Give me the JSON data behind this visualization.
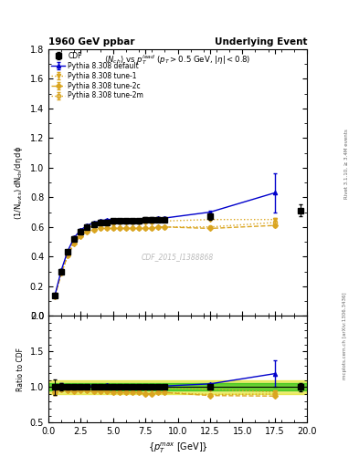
{
  "title_left": "1960 GeV ppbar",
  "title_right": "Underlying Event",
  "subtitle": "<N_{ch}> vs p_T^{lead} (p_T > 0.5 GeV, |\\eta| < 0.8)",
  "watermark": "CDF_2015_I1388868",
  "right_label": "mcplots.cern.ch [arXiv:1306.3436]",
  "right_label2": "Rivet 3.1.10, ≥ 3.4M events",
  "xlabel": "{p_T^{max} [GeV]}",
  "ylabel_main": "((1/N_{events}) dN_{ch}/dη, dϕ)",
  "ylabel_ratio": "Ratio to CDF",
  "xlim": [
    0,
    20
  ],
  "ylim_main": [
    0.0,
    1.8
  ],
  "ylim_ratio": [
    0.5,
    2.0
  ],
  "cdf_x": [
    0.5,
    1.0,
    1.5,
    2.0,
    2.5,
    3.0,
    3.5,
    4.0,
    4.5,
    5.0,
    5.5,
    6.0,
    6.5,
    7.0,
    7.5,
    8.0,
    8.5,
    9.0,
    12.5,
    19.5
  ],
  "cdf_y": [
    0.14,
    0.3,
    0.43,
    0.52,
    0.57,
    0.6,
    0.62,
    0.63,
    0.63,
    0.64,
    0.64,
    0.64,
    0.64,
    0.64,
    0.65,
    0.65,
    0.65,
    0.65,
    0.67,
    0.71
  ],
  "cdf_yerr": [
    0.015,
    0.015,
    0.015,
    0.015,
    0.015,
    0.015,
    0.015,
    0.015,
    0.015,
    0.015,
    0.015,
    0.015,
    0.015,
    0.015,
    0.015,
    0.015,
    0.015,
    0.015,
    0.02,
    0.04
  ],
  "py_default_x": [
    0.5,
    1.0,
    1.5,
    2.0,
    2.5,
    3.0,
    3.5,
    4.0,
    4.5,
    5.0,
    5.5,
    6.0,
    6.5,
    7.0,
    7.5,
    8.0,
    8.5,
    9.0,
    12.5,
    17.5
  ],
  "py_default_y": [
    0.14,
    0.31,
    0.44,
    0.53,
    0.58,
    0.61,
    0.63,
    0.64,
    0.65,
    0.65,
    0.65,
    0.65,
    0.65,
    0.65,
    0.65,
    0.65,
    0.66,
    0.66,
    0.7,
    0.83
  ],
  "py_default_yerr": [
    0.005,
    0.005,
    0.005,
    0.005,
    0.005,
    0.005,
    0.005,
    0.005,
    0.005,
    0.005,
    0.005,
    0.005,
    0.005,
    0.005,
    0.005,
    0.005,
    0.005,
    0.005,
    0.01,
    0.13
  ],
  "py_tune1_x": [
    0.5,
    1.0,
    1.5,
    2.0,
    2.5,
    3.0,
    3.5,
    4.0,
    4.5,
    5.0,
    5.5,
    6.0,
    6.5,
    7.0,
    7.5,
    8.0,
    8.5,
    9.0,
    12.5,
    17.5
  ],
  "py_tune1_y": [
    0.13,
    0.29,
    0.42,
    0.51,
    0.56,
    0.59,
    0.61,
    0.62,
    0.62,
    0.62,
    0.63,
    0.63,
    0.63,
    0.63,
    0.63,
    0.63,
    0.64,
    0.64,
    0.65,
    0.65
  ],
  "py_tune1_yerr": [
    0.005,
    0.005,
    0.005,
    0.005,
    0.005,
    0.005,
    0.005,
    0.005,
    0.005,
    0.005,
    0.005,
    0.005,
    0.005,
    0.005,
    0.005,
    0.005,
    0.005,
    0.005,
    0.005,
    0.01
  ],
  "py_tune2c_x": [
    0.5,
    1.0,
    1.5,
    2.0,
    2.5,
    3.0,
    3.5,
    4.0,
    4.5,
    5.0,
    5.5,
    6.0,
    6.5,
    7.0,
    7.5,
    8.0,
    8.5,
    9.0,
    12.5,
    17.5
  ],
  "py_tune2c_y": [
    0.13,
    0.29,
    0.41,
    0.49,
    0.54,
    0.57,
    0.58,
    0.59,
    0.59,
    0.59,
    0.59,
    0.59,
    0.59,
    0.59,
    0.59,
    0.59,
    0.6,
    0.6,
    0.59,
    0.61
  ],
  "py_tune2c_yerr": [
    0.005,
    0.005,
    0.005,
    0.005,
    0.005,
    0.005,
    0.005,
    0.005,
    0.005,
    0.005,
    0.005,
    0.005,
    0.005,
    0.005,
    0.005,
    0.005,
    0.005,
    0.005,
    0.005,
    0.01
  ],
  "py_tune2m_x": [
    0.5,
    1.0,
    1.5,
    2.0,
    2.5,
    3.0,
    3.5,
    4.0,
    4.5,
    5.0,
    5.5,
    6.0,
    6.5,
    7.0,
    7.5,
    8.0,
    8.5,
    9.0,
    12.5,
    17.5
  ],
  "py_tune2m_y": [
    0.13,
    0.29,
    0.41,
    0.5,
    0.55,
    0.57,
    0.58,
    0.59,
    0.59,
    0.59,
    0.59,
    0.59,
    0.59,
    0.59,
    0.59,
    0.59,
    0.6,
    0.6,
    0.6,
    0.63
  ],
  "py_tune2m_yerr": [
    0.005,
    0.005,
    0.005,
    0.005,
    0.005,
    0.005,
    0.005,
    0.005,
    0.005,
    0.005,
    0.005,
    0.005,
    0.005,
    0.005,
    0.005,
    0.005,
    0.005,
    0.005,
    0.005,
    0.01
  ],
  "color_cdf": "#000000",
  "color_default": "#0000CC",
  "color_tune1": "#DAA520",
  "color_tune2c": "#DAA520",
  "color_tune2m": "#DAA520",
  "band_green": "#00BB00",
  "band_yellow": "#DDDD00",
  "band_green_alpha": 0.55,
  "band_yellow_alpha": 0.55,
  "yticks_main": [
    0.0,
    0.2,
    0.4,
    0.6,
    0.8,
    1.0,
    1.2,
    1.4,
    1.6,
    1.8
  ],
  "yticks_ratio": [
    0.5,
    1.0,
    1.5,
    2.0
  ]
}
